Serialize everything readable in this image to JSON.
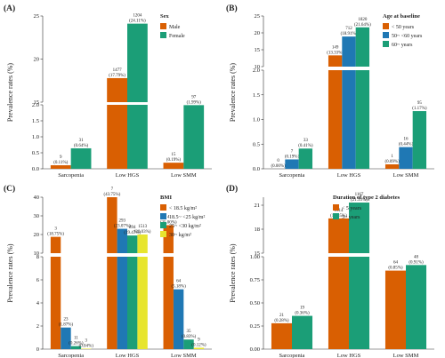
{
  "chart_data": [
    {
      "type": "bar",
      "panel_label": "(A)",
      "ylabel": "Prevalence rates (%)",
      "categories": [
        "Sarcopenia",
        "Low HGS",
        "Low SMM"
      ],
      "legend_title": "Sex",
      "legend_position": "top-right",
      "axis_break": true,
      "lower_ylim": [
        0,
        2
      ],
      "lower_ticks": [
        "0.0",
        "0.5",
        "1.0",
        "1.5",
        "2.0"
      ],
      "upper_ylim": [
        15,
        25
      ],
      "upper_ticks": [
        "15",
        "20",
        "25"
      ],
      "series": [
        {
          "name": "Male",
          "color": "#d95f02",
          "values": [
            0.11,
            17.79,
            0.19
          ],
          "labels": [
            [
              "9",
              "(0.11%)"
            ],
            [
              "1477",
              "(17.79%)"
            ],
            [
              "15",
              "(0.19%)"
            ]
          ]
        },
        {
          "name": "Female",
          "color": "#1b9e77",
          "values": [
            0.64,
            24.11,
            1.99
          ],
          "labels": [
            [
              "31",
              "(0.64%)"
            ],
            [
              "1204",
              "(24.11%)"
            ],
            [
              "97",
              "(1.99%)"
            ]
          ]
        }
      ]
    },
    {
      "type": "bar",
      "panel_label": "(B)",
      "ylabel": "Prevalence rates (%)",
      "categories": [
        "Sarcopenia",
        "Low HGS",
        "Low SMM"
      ],
      "legend_title": "Age at baseline",
      "legend_position": "top-right",
      "axis_break": true,
      "lower_ylim": [
        0,
        2
      ],
      "lower_ticks": [
        "0.0",
        "0.5",
        "1.0",
        "1.5",
        "2.0"
      ],
      "upper_ylim": [
        10,
        25
      ],
      "upper_ticks": [
        "10",
        "15",
        "20",
        "25"
      ],
      "series": [
        {
          "name": "< 50 years",
          "color": "#d95f02",
          "values": [
            0.0,
            13.33,
            0.09
          ],
          "labels": [
            [
              "0",
              "(0.00%)"
            ],
            [
              "149",
              "(13.33%)"
            ],
            [
              "1",
              "(0.09%)"
            ]
          ]
        },
        {
          "name": "50~ <60 years",
          "color": "#1f78b4",
          "values": [
            0.19,
            18.91,
            0.44
          ],
          "labels": [
            [
              "7",
              "(0.19%)"
            ],
            [
              "712",
              "(18.91%)"
            ],
            [
              "16",
              "(0.44%)"
            ]
          ]
        },
        {
          "name": "60~ years",
          "color": "#1b9e77",
          "values": [
            0.41,
            21.64,
            1.17
          ],
          "labels": [
            [
              "33",
              "(0.41%)"
            ],
            [
              "1820",
              "(21.64%)"
            ],
            [
              "95",
              "(1.17%)"
            ]
          ]
        }
      ]
    },
    {
      "type": "bar",
      "panel_label": "(C)",
      "ylabel": "Prevalence rates (%)",
      "categories": [
        "Sarcopenia",
        "Low HGS",
        "Low SMM"
      ],
      "legend_title": "BMI",
      "legend_position": "top-right",
      "axis_break": true,
      "lower_ylim": [
        0,
        8
      ],
      "lower_ticks": [
        "0",
        "2",
        "4",
        "6",
        "8"
      ],
      "upper_ylim": [
        10,
        40
      ],
      "upper_ticks": [
        "10",
        "20",
        "30",
        "40"
      ],
      "series": [
        {
          "name": "< 18.5 kg/m²",
          "color": "#d95f02",
          "values": [
            18.75,
            43.75,
            25.0
          ],
          "labels": [
            [
              "3",
              "(18.75%)"
            ],
            [
              "7",
              "(43.75%)"
            ],
            [
              "4",
              "(25.00%)"
            ]
          ]
        },
        {
          "name": "18.5~ <25 kg/m²",
          "color": "#1f78b4",
          "values": [
            1.87,
            23.07,
            5.18
          ],
          "labels": [
            [
              "23",
              "(1.87%)"
            ],
            [
              "293",
              "(23.07%)"
            ],
            [
              "64",
              "(5.18%)"
            ]
          ]
        },
        {
          "name": "25~ <30 kg/m²",
          "color": "#1b9e77",
          "values": [
            0.26,
            19.47,
            0.83
          ],
          "labels": [
            [
              "11",
              "(0.26%)"
            ],
            [
              "894",
              "(19.47%)"
            ],
            [
              "35",
              "(0.83%)"
            ]
          ]
        },
        {
          "name": "30~ kg/m²",
          "color": "#e7e52e",
          "values": [
            0.04,
            20.03,
            0.12
          ],
          "labels": [
            [
              "3",
              "(0.04%)"
            ],
            [
              "1513",
              "(20.03%)"
            ],
            [
              "9",
              "(0.12%)"
            ]
          ]
        }
      ]
    },
    {
      "type": "bar",
      "panel_label": "(D)",
      "ylabel": "Prevalence rates (%)",
      "categories": [
        "Sarcopenia",
        "Low HGS",
        "Low SMM"
      ],
      "legend_title": "Duration of type 2 diabetes",
      "legend_position": "top-right",
      "axis_break": true,
      "lower_ylim": [
        0,
        1
      ],
      "lower_ticks": [
        "0.00",
        "0.25",
        "0.50",
        "0.75",
        "1.00"
      ],
      "upper_ylim": [
        15,
        22
      ],
      "upper_ticks": [
        "15",
        "18",
        "21"
      ],
      "series": [
        {
          "name": "< 5 years",
          "color": "#d95f02",
          "values": [
            0.28,
            19.35,
            0.85
          ],
          "labels": [
            [
              "21",
              "(0.28%)"
            ],
            [
              "1514",
              "(19.35%)"
            ],
            [
              "64",
              "(0.85%)"
            ]
          ]
        },
        {
          "name": "5~ years",
          "color": "#1b9e77",
          "values": [
            0.36,
            21.33,
            0.91
          ],
          "labels": [
            [
              "19",
              "(0.36%)"
            ],
            [
              "1167",
              "(21.33%)"
            ],
            [
              "48",
              "(0.91%)"
            ]
          ]
        }
      ]
    }
  ]
}
